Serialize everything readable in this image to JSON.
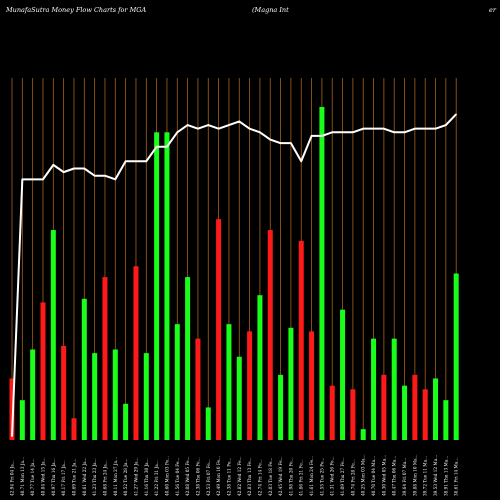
{
  "header": {
    "title": "MunafaSutra  Money Flow  Charts for MGA",
    "company": "(Magna  Int",
    "company_cut": "er"
  },
  "colors": {
    "background": "#000000",
    "gridline": "#a5621b",
    "up": "#19ff19",
    "down": "#ff1a1a",
    "line": "#ffffff",
    "text": "#ffffff"
  },
  "chart_data": {
    "type": "bar",
    "categories": [
      "Fri 04 Jan 2025",
      "Mon 13 Jan 2025",
      "Tue 14 Jan 2025",
      "Wed 15 Jan 2025",
      "Thu 16 Jan 2025",
      "Fri 17 Jan 2025",
      "Tue 21 Jan 2025",
      "Wed 22 Jan 2025",
      "Thu 23 Jan 2025",
      "Fri 24 Jan 2025",
      "Mon 27 Jan 2025",
      "Tue 28 Jan 2025",
      "Wed 29 Jan 2025",
      "Thu 30 Jan 2025",
      "Fri 31 Jan 2025",
      "Mon 03 Feb 2025",
      "Tue 04 Feb 2025",
      "Wed 05 Feb 2025",
      "Thu 06 Feb 2025",
      "Fri 07 Feb 2025",
      "Mon 10 Feb 2025",
      "Tue 11 Feb 2025",
      "Wed 12 Feb 2025",
      "Thu 13 Feb 2025",
      "Fri 14 Feb 2025",
      "Tue 18 Feb 2025",
      "Wed 19 Feb 2025",
      "Thu 20 Feb 2025",
      "Fri 21 Feb 2025",
      "Mon 24 Feb 2025",
      "Tue 25 Feb 2025",
      "Wed 26 Feb 2025",
      "Thu 27 Feb 2025",
      "Fri 28 Feb 2025",
      "Mon 03 Mar 2025",
      "Tue 04 Mar 2025",
      "Wed 05 Mar 2025",
      "Thu 06 Mar 2025",
      "Fri 07 Mar 2025",
      "Mon 10 Mar 2025",
      "Tue 11 Mar 2025",
      "Wed 12 Mar 2025",
      "Thu 13 Mar 2025",
      "Fri 14 Mar 2025"
    ],
    "tick_labels": [
      "42.94 Fri 04 Ja...",
      "40.71 Mon 13 Ja...",
      "40.77 Tue 14 Ja...",
      "40.84 Wed 15 Ja...",
      "40.97 Thu 16 Ja...",
      "40.17 Fri 17 Ja...",
      "40.69 Tue 21 Ja...",
      "40.61 Wed 22 Ja...",
      "41.23 Thu 23 Ja...",
      "40.68 Fri 24 Ja...",
      "40.11 Mon 27 Ja...",
      "40.52 Tue 28 Ja...",
      "41.27 Wed 29 Ja...",
      "41.16 Thu 30 Ja...",
      "41.22 Fri 31 Ja...",
      "40.60 Mon 03 Fe...",
      "41.56 Tue 04 Fe...",
      "42.08 Wed 05 Fe...",
      "42.38 Thu 06 Fe...",
      "42.53 Fri 07 Fe...",
      "42.49 Mon 10 Fe...",
      "42.38 Tue 11 Fe...",
      "42.82 Wed 12 Fe...",
      "42.83 Thu 13 Fe...",
      "42.74 Fri 14 Fe...",
      "42.03 Tue 18 Fe...",
      "42.45 Wed 19 Fe...",
      "41.98 Thu 20 Fe...",
      "41.86 Fri 21 Fe...",
      "41.61 Mon 24 Fe...",
      "41.55 Tue 25 Fe...",
      "41.31 Wed 26 Fe...",
      "41.09 Thu 27 Fe...",
      "40.74 Fri 28 Fe...",
      "40.25 Mon 03 Ma...",
      "40.70 Tue 04 Ma...",
      "40.30 Wed 05 Ma...",
      "40.47 Thu 06 Ma...",
      "39.64 Fri 07 Ma...",
      "39.88 Mon 10 Ma...",
      "39.72 Tue 11 Ma...",
      "39.53 Wed 12 Ma...",
      "38.91 Thu 13 Ma...",
      "38.61 Fri 14 Ma..."
    ],
    "bar_values": [
      17,
      11,
      25,
      38,
      58,
      26,
      6,
      39,
      24,
      45,
      25,
      10,
      48,
      24,
      85,
      85,
      32,
      45,
      28,
      9,
      61,
      32,
      23,
      30,
      40,
      58,
      18,
      31,
      55,
      30,
      92,
      15,
      36,
      14,
      3,
      28,
      18,
      28,
      15,
      18,
      14,
      17,
      11,
      46
    ],
    "bar_colors": [
      "down",
      "up",
      "up",
      "down",
      "up",
      "down",
      "down",
      "up",
      "up",
      "down",
      "up",
      "up",
      "down",
      "up",
      "up",
      "up",
      "up",
      "up",
      "down",
      "up",
      "down",
      "up",
      "up",
      "down",
      "up",
      "down",
      "up",
      "up",
      "down",
      "down",
      "up",
      "down",
      "up",
      "down",
      "up",
      "up",
      "down",
      "up",
      "up",
      "down",
      "down",
      "up",
      "up",
      "up"
    ],
    "line_values": [
      1,
      72,
      72,
      72,
      76,
      74,
      75,
      75,
      73,
      73,
      72,
      77,
      77,
      77,
      81,
      81,
      85,
      87,
      86,
      87,
      86,
      87,
      88,
      86,
      85,
      83,
      82,
      82,
      77,
      84,
      84,
      85,
      85,
      85,
      86,
      86,
      86,
      85,
      85,
      86,
      86,
      86,
      87,
      90
    ],
    "ylim": [
      0,
      100
    ],
    "grid": true,
    "legend": "none"
  }
}
